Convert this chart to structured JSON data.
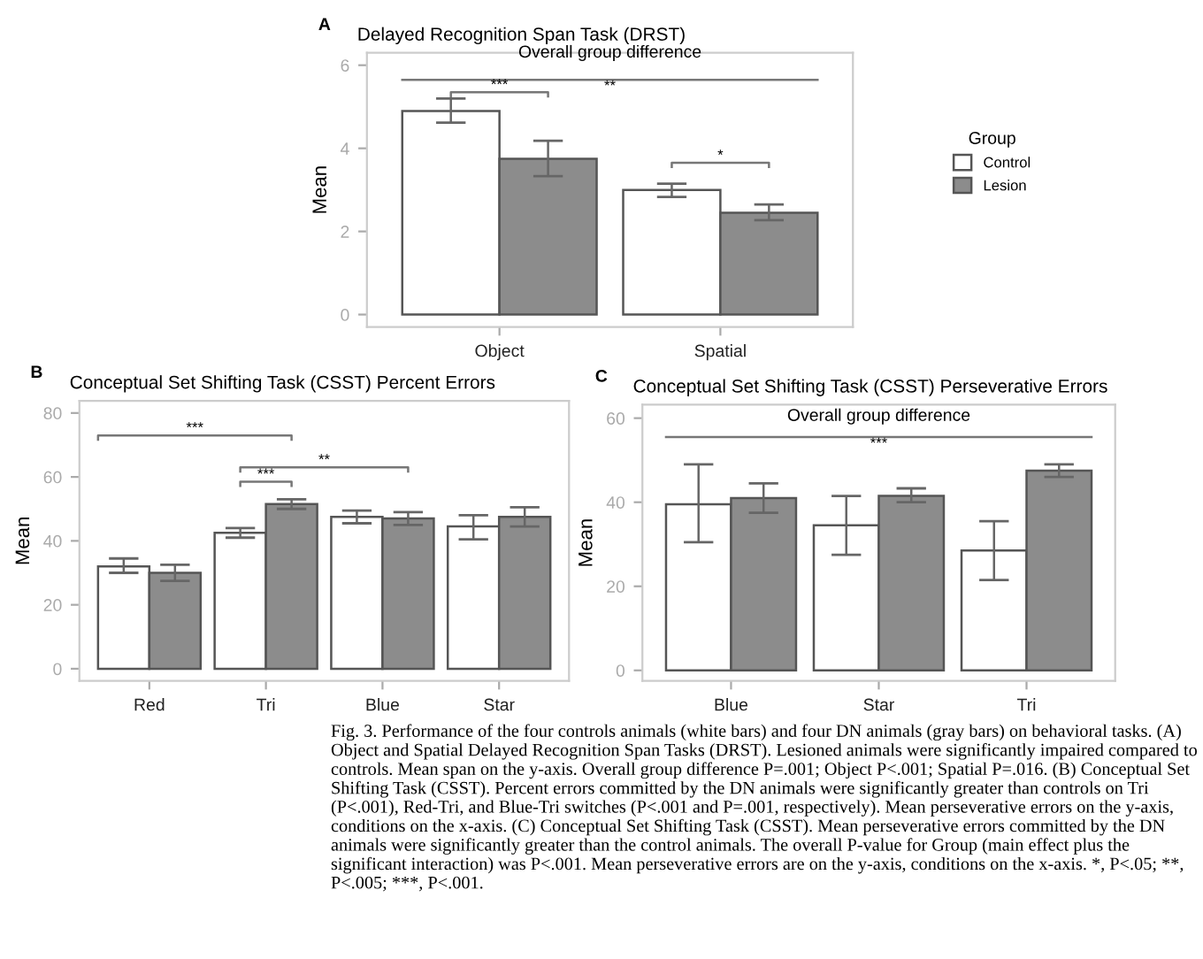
{
  "chart_data": [
    {
      "type": "bar",
      "title": "Delayed Recognition Span Task (DRST)",
      "ylabel": "Mean",
      "legend_title": "Group",
      "legend": "right",
      "categories": [
        "Object",
        "Spatial"
      ],
      "series": [
        {
          "name": "Control",
          "color": "#ffffff",
          "values": [
            4.9,
            3.0
          ],
          "errors": [
            [
              4.62,
              5.2
            ],
            [
              2.83,
              3.15
            ]
          ]
        },
        {
          "name": "Lesion",
          "color": "#8c8c8c",
          "values": [
            3.75,
            2.45
          ],
          "errors": [
            [
              3.33,
              4.18
            ],
            [
              2.27,
              2.65
            ]
          ]
        }
      ],
      "ylim": [
        -0.3,
        6.3
      ],
      "yticks": [
        0,
        2,
        4,
        6
      ],
      "grid": false,
      "ref_lines": [
        {
          "axis": "y",
          "value": 5.65,
          "label": "**",
          "color": "#777777"
        }
      ],
      "annotations": [
        "A",
        "Overall group difference",
        "***",
        "*"
      ]
    },
    {
      "type": "bar",
      "title": "Conceptual Set Shifting Task (CSST) Percent Errors",
      "ylabel": "Mean",
      "categories": [
        "Red",
        "Tri",
        "Blue",
        "Star"
      ],
      "series": [
        {
          "color": "#ffffff",
          "values": [
            32,
            42.5,
            47.5,
            44.5
          ],
          "errors": [
            [
              30,
              34.5
            ],
            [
              41,
              44
            ],
            [
              45.5,
              49.5
            ],
            [
              40.5,
              48
            ]
          ]
        },
        {
          "color": "#8c8c8c",
          "values": [
            30,
            51.5,
            47,
            47.5
          ],
          "errors": [
            [
              27.5,
              32.5
            ],
            [
              50,
              53
            ],
            [
              45,
              49
            ],
            [
              44.5,
              50.5
            ]
          ]
        }
      ],
      "ylim": [
        -3.8,
        83.8
      ],
      "yticks": [
        0,
        20,
        40,
        60,
        80
      ],
      "grid": false,
      "annotations": [
        "B",
        "***",
        "**",
        "***"
      ]
    },
    {
      "type": "bar",
      "title": "Conceptual Set Shifting Task (CSST) Perseverative Errors",
      "ylabel": "Mean",
      "categories": [
        "Blue",
        "Star",
        "Tri"
      ],
      "series": [
        {
          "color": "#ffffff",
          "values": [
            39.5,
            34.5,
            28.5
          ],
          "errors": [
            [
              30.5,
              49
            ],
            [
              27.5,
              41.5
            ],
            [
              21.5,
              35.5
            ]
          ]
        },
        {
          "color": "#8c8c8c",
          "values": [
            41,
            41.5,
            47.5
          ],
          "errors": [
            [
              37.5,
              44.5
            ],
            [
              40,
              43.3
            ],
            [
              46,
              49
            ]
          ]
        }
      ],
      "ylim": [
        -2.5,
        63.2
      ],
      "yticks": [
        0,
        20,
        40,
        60
      ],
      "grid": false,
      "ref_lines": [
        {
          "axis": "y",
          "value": 55.5,
          "label": "***",
          "color": "#777777"
        }
      ],
      "annotations": [
        "C",
        "Overall group difference",
        "Fig. 3. Performance of the four controls animals (white bars) and four DN animals (gray bars) on behavioral tasks. (A) Object and Spatial Delayed Recognition Span Tasks (DRST). Lesioned animals were significantly impaired compared to controls. Mean span on the y-axis. Overall group difference P=.001; Object P<.001; Spatial P=.016. (B) Conceptual Set Shifting Task (CSST). Percent errors committed by the DN animals were significantly greater than controls on Tri (P<.001), Red-Tri, and Blue-Tri switches (P<.001 and P=.001, respectively). Mean perseverative errors on the y-axis, conditions on the x-axis. (C) Conceptual Set Shifting Task (CSST). Mean perseverative errors committed by the DN animals were significantly greater than the control animals. The overall P-value for Group (main effect plus the significant interaction) was P<.001. Mean perseverative errors are on the y-axis, conditions on the x-axis. *, P<.05; **, P<.005; ***, P<.001."
      ]
    }
  ]
}
